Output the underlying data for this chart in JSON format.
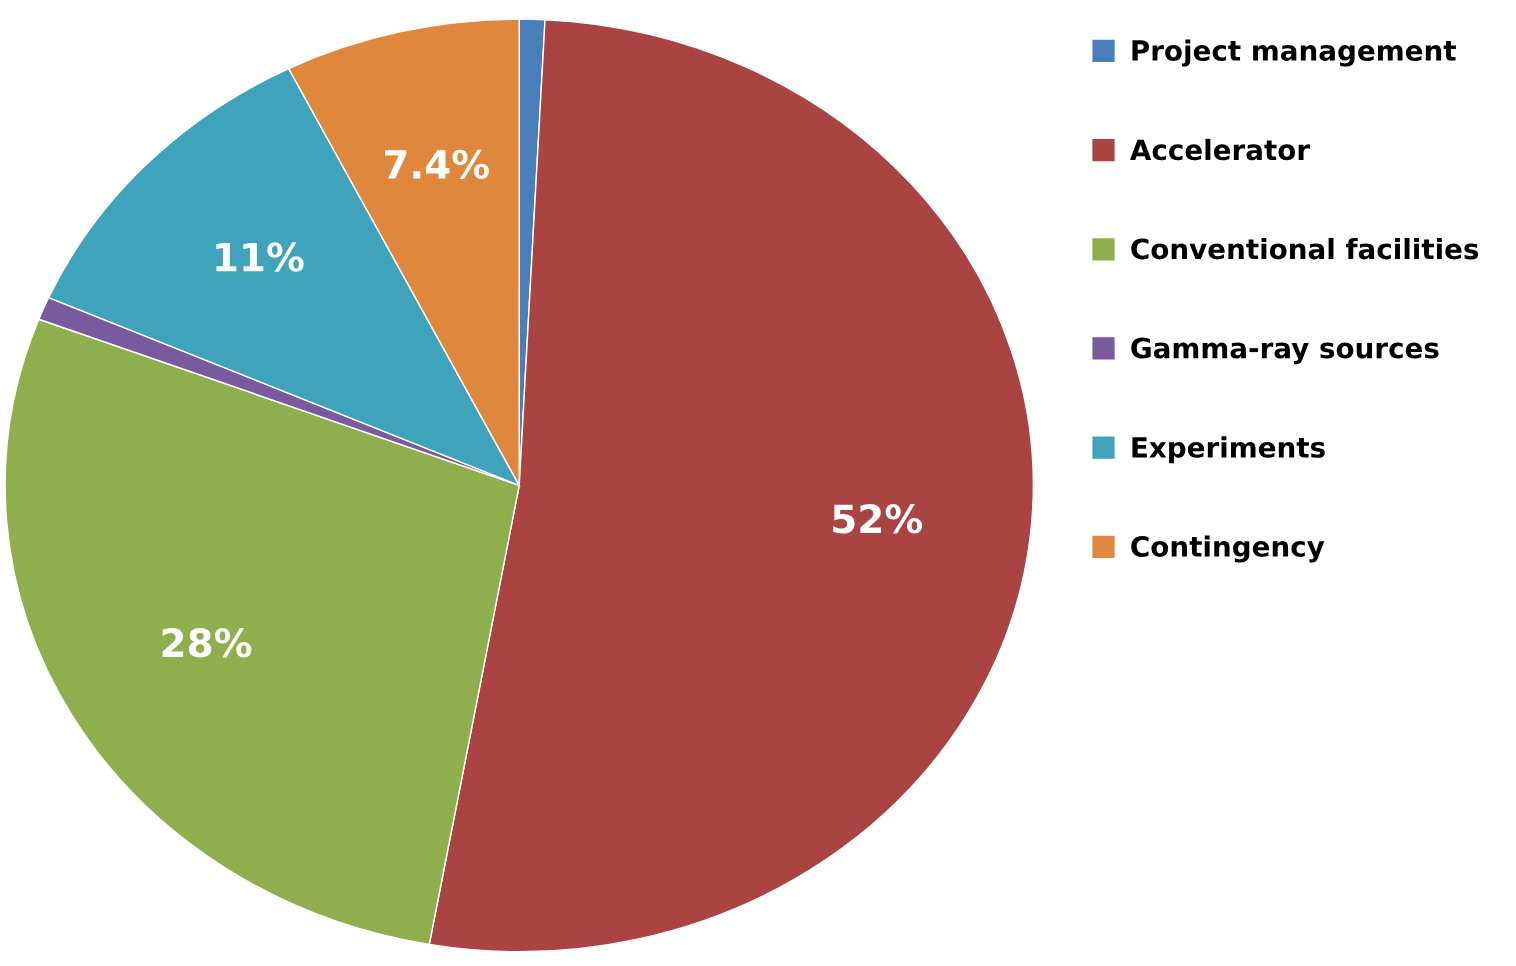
{
  "chart_data": {
    "type": "pie",
    "categories": [
      "Project management",
      "Accelerator",
      "Conventional facilities",
      "Gamma-ray sources",
      "Experiments",
      "Contingency"
    ],
    "values": [
      0.8,
      52,
      28,
      0.8,
      11,
      7.4
    ],
    "value_labels": [
      null,
      "52%",
      "28%",
      null,
      "11%",
      "7.4%"
    ],
    "colors": [
      "#4a7ebb",
      "#a94442",
      "#8faf4f",
      "#7a5a9e",
      "#3fa3bc",
      "#e0873e"
    ],
    "legend": "right"
  }
}
